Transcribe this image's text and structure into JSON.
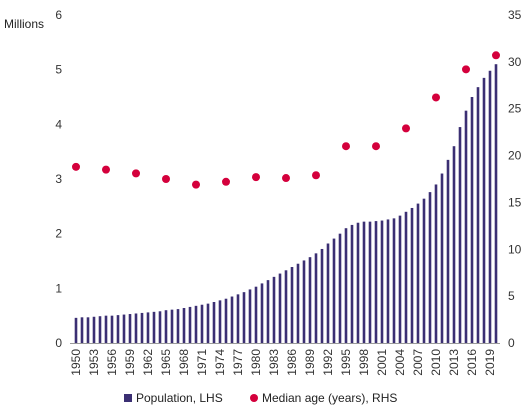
{
  "chart_data": {
    "type": "bar",
    "ylabel_left": "Millions",
    "ylim_left": [
      0,
      6
    ],
    "yticks_left": [
      "0",
      "1",
      "2",
      "3",
      "4",
      "5",
      "6"
    ],
    "ylim_right": [
      0,
      35
    ],
    "yticks_right": [
      "0",
      "5",
      "10",
      "15",
      "20",
      "25",
      "30",
      "35"
    ],
    "xtick_labels": [
      "1950",
      "1953",
      "1956",
      "1959",
      "1962",
      "1965",
      "1968",
      "1971",
      "1974",
      "1977",
      "1980",
      "1983",
      "1986",
      "1989",
      "1992",
      "1995",
      "1998",
      "2001",
      "2004",
      "2007",
      "2010",
      "2013",
      "2016",
      "2019"
    ],
    "grid": false,
    "legend_position": "bottom",
    "colors": {
      "bar": "#3b2f73",
      "dot": "#d4003c"
    },
    "years": [
      1950,
      1951,
      1952,
      1953,
      1954,
      1955,
      1956,
      1957,
      1958,
      1959,
      1960,
      1961,
      1962,
      1963,
      1964,
      1965,
      1966,
      1967,
      1968,
      1969,
      1970,
      1971,
      1972,
      1973,
      1974,
      1975,
      1976,
      1977,
      1978,
      1979,
      1980,
      1981,
      1982,
      1983,
      1984,
      1985,
      1986,
      1987,
      1988,
      1989,
      1990,
      1991,
      1992,
      1993,
      1994,
      1995,
      1996,
      1997,
      1998,
      1999,
      2000,
      2001,
      2002,
      2003,
      2004,
      2005,
      2006,
      2007,
      2008,
      2009,
      2010,
      2011,
      2012,
      2013,
      2014,
      2015,
      2016,
      2017,
      2018,
      2019,
      2020
    ],
    "series": [
      {
        "name": "Population, LHS",
        "type": "bar",
        "axis": "left",
        "values": [
          0.46,
          0.47,
          0.47,
          0.48,
          0.49,
          0.5,
          0.5,
          0.51,
          0.52,
          0.53,
          0.54,
          0.55,
          0.56,
          0.57,
          0.58,
          0.6,
          0.61,
          0.62,
          0.64,
          0.66,
          0.68,
          0.7,
          0.72,
          0.75,
          0.78,
          0.81,
          0.85,
          0.89,
          0.93,
          0.98,
          1.03,
          1.09,
          1.15,
          1.21,
          1.27,
          1.33,
          1.39,
          1.45,
          1.51,
          1.57,
          1.64,
          1.72,
          1.82,
          1.91,
          2.0,
          2.1,
          2.16,
          2.2,
          2.22,
          2.22,
          2.23,
          2.24,
          2.26,
          2.28,
          2.33,
          2.4,
          2.47,
          2.55,
          2.64,
          2.76,
          2.9,
          3.1,
          3.35,
          3.6,
          3.95,
          4.25,
          4.5,
          4.68,
          4.85,
          4.98,
          5.1
        ]
      },
      {
        "name": "Median age (years), RHS",
        "type": "scatter",
        "axis": "right",
        "x": [
          1950,
          1955,
          1960,
          1965,
          1970,
          1975,
          1980,
          1985,
          1990,
          1995,
          2000,
          2005,
          2010,
          2015,
          2020
        ],
        "values": [
          18.8,
          18.5,
          18.1,
          17.5,
          16.9,
          17.2,
          17.7,
          17.6,
          17.9,
          21.0,
          21.0,
          22.9,
          26.2,
          29.2,
          30.7
        ]
      }
    ]
  }
}
